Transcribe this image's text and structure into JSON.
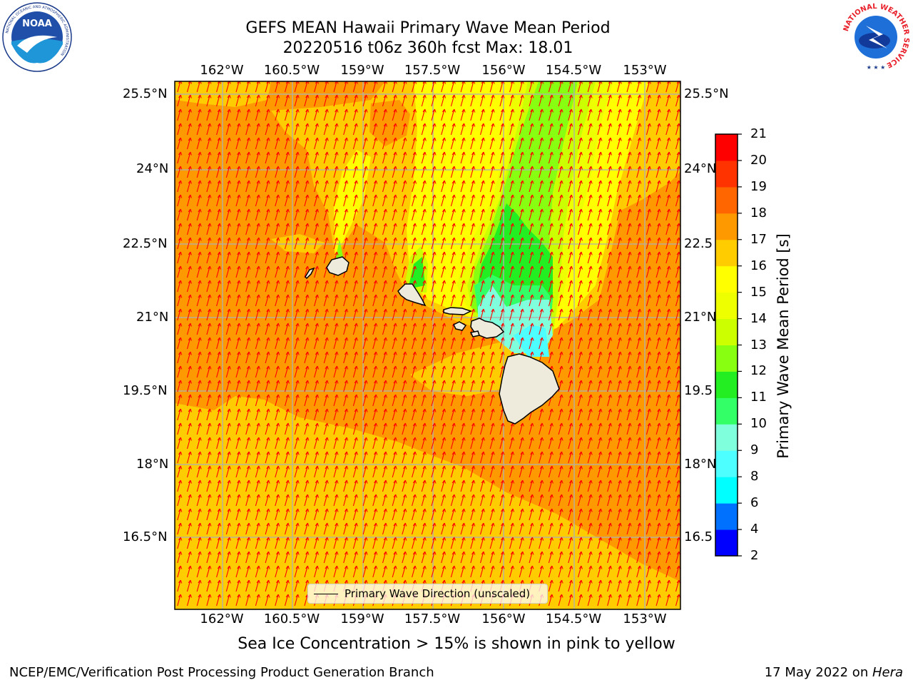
{
  "header": {
    "title_line1": "GEFS MEAN Hawaii Primary Wave Mean Period",
    "title_line2": "20220516 t06z 360h fcst   Max: 18.01"
  },
  "map": {
    "lon_labels": [
      "162°W",
      "160.5°W",
      "159°W",
      "157.5°W",
      "156°W",
      "154.5°W",
      "153°W"
    ],
    "lat_labels": [
      "25.5°N",
      "24°N",
      "22.5°N",
      "21°N",
      "19.5°N",
      "18°N",
      "16.5°N"
    ],
    "lat_labels_right": [
      "25.5°N",
      "24°N",
      "22.5",
      "21°N",
      "19.5",
      "18°N",
      "16.5"
    ],
    "islands": [
      "Niihau",
      "Kauai",
      "Oahu",
      "Molokai",
      "Lanai",
      "Maui",
      "Kahoolawe",
      "Hawaii"
    ],
    "legend_label": "Primary Wave Direction (unscaled)",
    "arrow_color": "#ff0000",
    "land_color": "#eeebdc",
    "grid_color": "#b0b0b0"
  },
  "colorbar": {
    "label": "Primary Wave Mean Period [s]",
    "levels": [
      2,
      4,
      6,
      8,
      9,
      10,
      11,
      12,
      13,
      14,
      15,
      16,
      17,
      18,
      19,
      20,
      21
    ],
    "tick_labels": [
      "2",
      "4",
      "6",
      "8",
      "9",
      "10",
      "11",
      "12",
      "13",
      "14",
      "15",
      "16",
      "17",
      "18",
      "19",
      "20",
      "21"
    ],
    "colors": [
      "#0000ff",
      "#0070ff",
      "#00ffff",
      "#4dffff",
      "#80ffdd",
      "#33ff66",
      "#22ee22",
      "#88ff11",
      "#ccff00",
      "#eeff00",
      "#ffff00",
      "#ffcc00",
      "#ff9900",
      "#ff6600",
      "#ff3300",
      "#ff0000"
    ]
  },
  "subnote": "Sea Ice Concentration > 15% is shown in pink to yellow",
  "footer": {
    "left": "NCEP/EMC/Verification Post Processing Product Generation Branch",
    "right_prefix": "17 May 2022 on ",
    "right_italic": "Hera"
  },
  "logos": {
    "noaa_text": "NOAA",
    "noaa_ring_text": "NATIONAL OCEANIC AND ATMOSPHERIC ADMINISTRATION",
    "noaa_ring_bottom": "U.S. DEPARTMENT OF COMMERCE",
    "nws_ring_text": "NATIONAL WEATHER SERVICE"
  }
}
